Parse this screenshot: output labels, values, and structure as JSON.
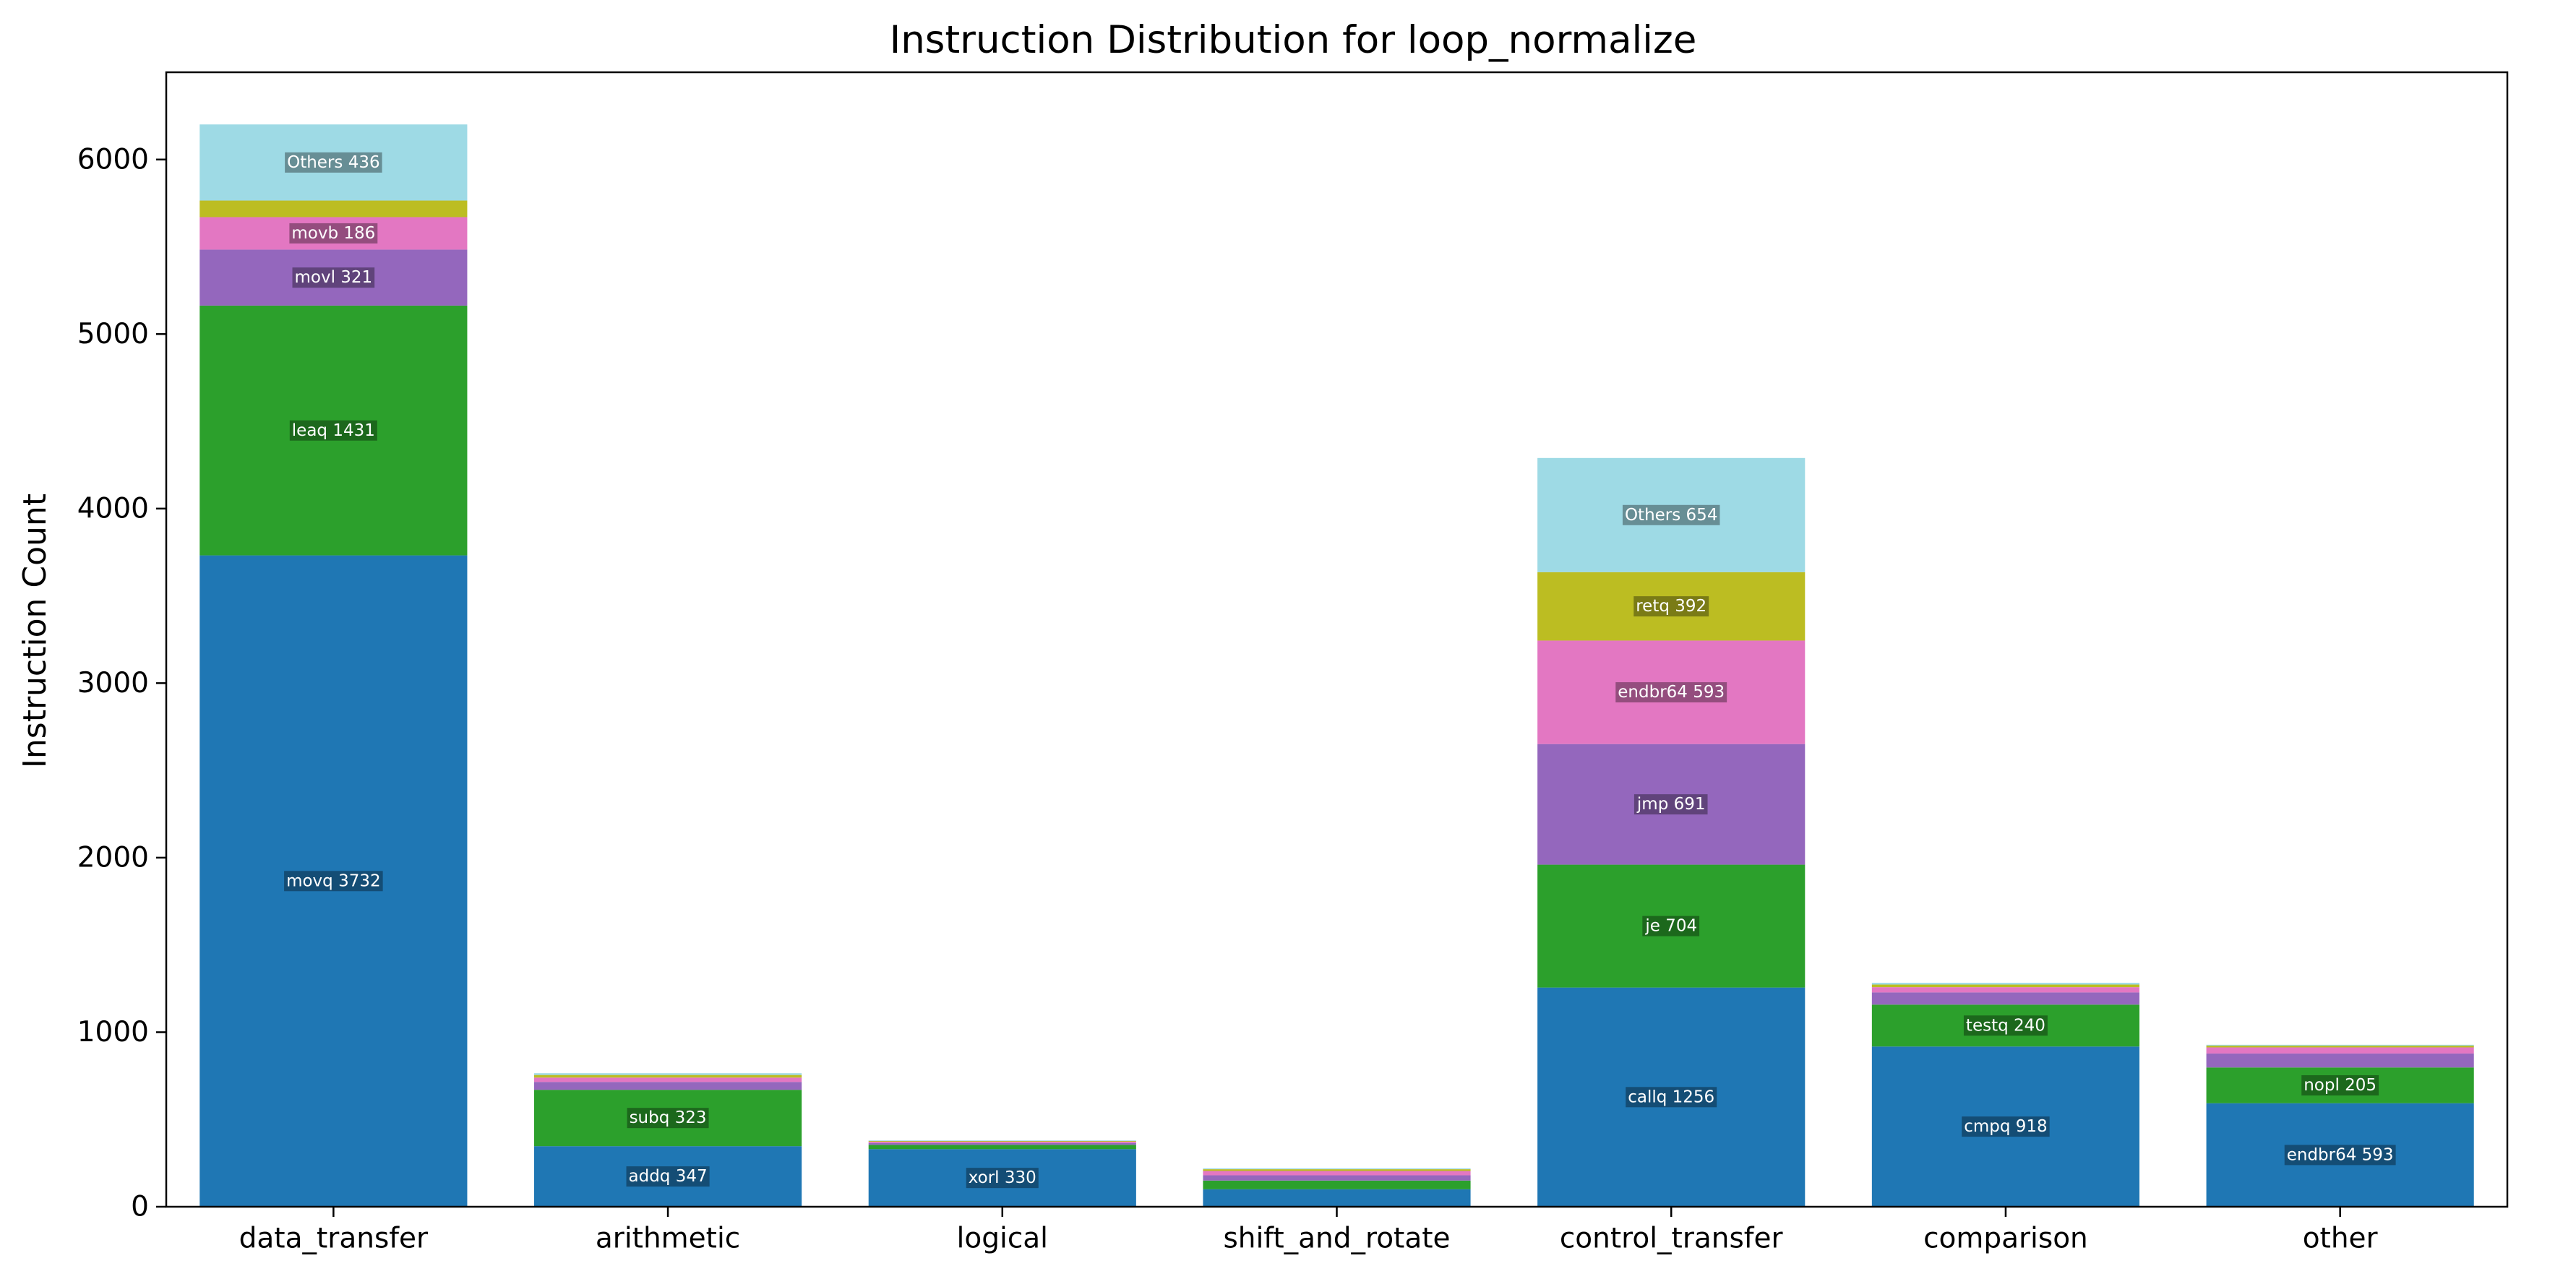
{
  "chart_data": {
    "type": "bar",
    "stacked": true,
    "title": "Instruction Distribution for loop_normalize",
    "xlabel": "",
    "ylabel": "Instruction Count",
    "ylim": [
      0,
      6500
    ],
    "yticks": [
      0,
      1000,
      2000,
      3000,
      4000,
      5000,
      6000
    ],
    "grid": false,
    "legend": "none",
    "categories": [
      "data_transfer",
      "arithmetic",
      "logical",
      "shift_and_rotate",
      "control_transfer",
      "comparison",
      "other"
    ],
    "colors": [
      "#1f77b4",
      "#2ca02c",
      "#9467bd",
      "#e377c2",
      "#bcbd22",
      "#9edae5"
    ],
    "segments": [
      [
        {
          "label": "movq 3732",
          "value": 3732
        },
        {
          "label": "leaq 1431",
          "value": 1431
        },
        {
          "label": "movl 321",
          "value": 321
        },
        {
          "label": "movb 186",
          "value": 186
        },
        {
          "label": "",
          "value": 95
        },
        {
          "label": "Others 436",
          "value": 436
        }
      ],
      [
        {
          "label": "addq 347",
          "value": 347
        },
        {
          "label": "subq 323",
          "value": 323
        },
        {
          "label": "",
          "value": 45
        },
        {
          "label": "",
          "value": 25
        },
        {
          "label": "",
          "value": 15
        },
        {
          "label": "",
          "value": 10
        }
      ],
      [
        {
          "label": "xorl 330",
          "value": 330
        },
        {
          "label": "",
          "value": 25
        },
        {
          "label": "",
          "value": 10
        },
        {
          "label": "",
          "value": 8
        },
        {
          "label": "",
          "value": 4
        },
        {
          "label": "",
          "value": 3
        }
      ],
      [
        {
          "label": "",
          "value": 100
        },
        {
          "label": "",
          "value": 50
        },
        {
          "label": "",
          "value": 30
        },
        {
          "label": "",
          "value": 25
        },
        {
          "label": "",
          "value": 10
        },
        {
          "label": "",
          "value": 5
        }
      ],
      [
        {
          "label": "callq 1256",
          "value": 1256
        },
        {
          "label": "je 704",
          "value": 704
        },
        {
          "label": "jmp 691",
          "value": 691
        },
        {
          "label": "endbr64 593",
          "value": 593
        },
        {
          "label": "retq 392",
          "value": 392
        },
        {
          "label": "Others 654",
          "value": 654
        }
      ],
      [
        {
          "label": "cmpq 918",
          "value": 918
        },
        {
          "label": "testq 240",
          "value": 240
        },
        {
          "label": "",
          "value": 70
        },
        {
          "label": "",
          "value": 30
        },
        {
          "label": "",
          "value": 15
        },
        {
          "label": "",
          "value": 10
        }
      ],
      [
        {
          "label": "endbr64 593",
          "value": 593
        },
        {
          "label": "nopl 205",
          "value": 205
        },
        {
          "label": "",
          "value": 80
        },
        {
          "label": "",
          "value": 35
        },
        {
          "label": "",
          "value": 10
        },
        {
          "label": "",
          "value": 5
        }
      ]
    ]
  }
}
